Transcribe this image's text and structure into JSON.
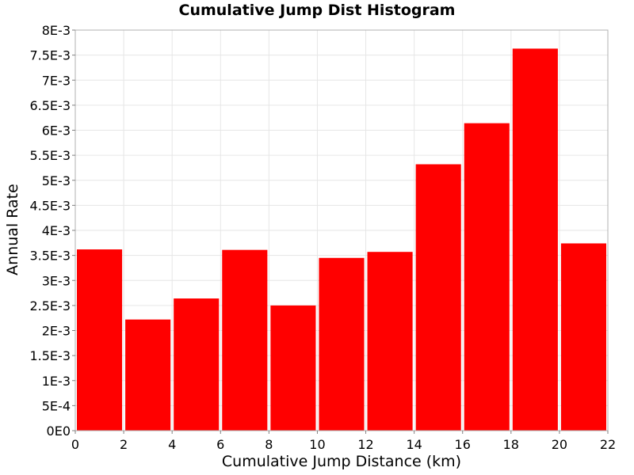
{
  "chart_data": {
    "type": "bar",
    "title": "Cumulative Jump Dist Histogram",
    "xlabel": "Cumulative Jump Distance (km)",
    "ylabel": "Annual Rate",
    "xlim": [
      0,
      22
    ],
    "ylim": [
      0,
      0.008
    ],
    "x_ticks": [
      "0",
      "2",
      "4",
      "6",
      "8",
      "10",
      "12",
      "14",
      "16",
      "18",
      "20",
      "22"
    ],
    "y_ticks": [
      "0E0",
      "5E-4",
      "1E-3",
      "1.5E-3",
      "2E-3",
      "2.5E-3",
      "3E-3",
      "3.5E-3",
      "4E-3",
      "4.5E-3",
      "5E-3",
      "5.5E-3",
      "6E-3",
      "6.5E-3",
      "7E-3",
      "7.5E-3",
      "8E-3"
    ],
    "grid": true,
    "bar_color": "#ff0000",
    "bins": [
      [
        0,
        2
      ],
      [
        2,
        4
      ],
      [
        4,
        6
      ],
      [
        6,
        8
      ],
      [
        8,
        10
      ],
      [
        10,
        12
      ],
      [
        12,
        14
      ],
      [
        14,
        16
      ],
      [
        16,
        18
      ],
      [
        18,
        20
      ],
      [
        20,
        22
      ]
    ],
    "values": [
      0.00362,
      0.00222,
      0.00264,
      0.00361,
      0.0025,
      0.00345,
      0.00357,
      0.00532,
      0.00614,
      0.00763,
      0.00374
    ]
  }
}
